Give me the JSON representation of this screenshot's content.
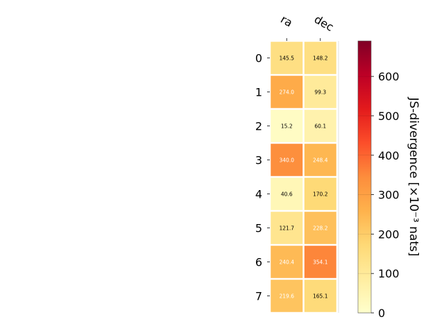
{
  "chart_data": {
    "type": "heatmap",
    "columns": [
      "ra",
      "dec"
    ],
    "rows": [
      "0",
      "1",
      "2",
      "3",
      "4",
      "5",
      "6",
      "7"
    ],
    "values": [
      [
        145.5,
        148.2
      ],
      [
        274.0,
        99.3
      ],
      [
        15.2,
        60.1
      ],
      [
        340.0,
        248.4
      ],
      [
        40.6,
        170.2
      ],
      [
        121.7,
        228.2
      ],
      [
        240.4,
        354.1
      ],
      [
        219.6,
        165.1
      ]
    ],
    "cell_labels": [
      [
        "145.5",
        "148.2"
      ],
      [
        "274.0",
        "99.3"
      ],
      [
        "15.2",
        "60.1"
      ],
      [
        "340.0",
        "248.4"
      ],
      [
        "40.6",
        "170.2"
      ],
      [
        "121.7",
        "228.2"
      ],
      [
        "240.4",
        "354.1"
      ],
      [
        "219.6",
        "165.1"
      ]
    ],
    "colorbar": {
      "label": "JS-divergence [×10⁻³ nats]",
      "range": [
        0,
        690
      ],
      "ticks": [
        0,
        100,
        200,
        300,
        400,
        500,
        600
      ],
      "tick_labels": [
        "0",
        "100",
        "200",
        "300",
        "400",
        "500",
        "600"
      ],
      "colormap": "YlOrRd"
    }
  }
}
